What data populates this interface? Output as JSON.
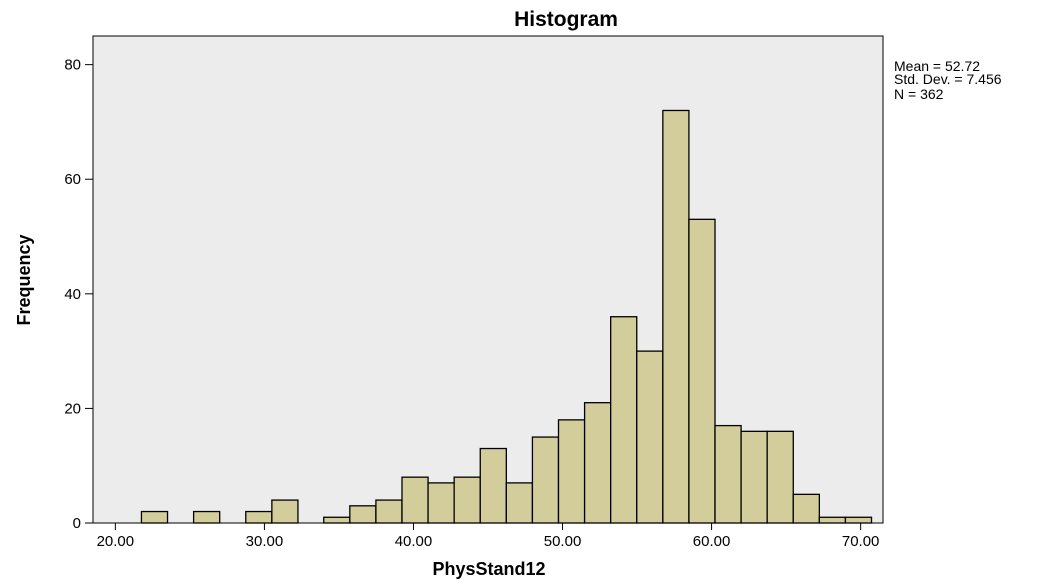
{
  "chart_data": {
    "type": "bar",
    "title": "Histogram",
    "xlabel": "PhysStand12",
    "ylabel": "Frequency",
    "xlim": [
      18.5,
      71.5
    ],
    "ylim": [
      0,
      85
    ],
    "x_ticks": [
      "20.00",
      "30.00",
      "40.00",
      "50.00",
      "60.00",
      "70.00"
    ],
    "x_tick_values": [
      20,
      30,
      40,
      50,
      60,
      70
    ],
    "y_ticks": [
      "0",
      "20",
      "40",
      "60",
      "80"
    ],
    "y_tick_values": [
      0,
      20,
      40,
      60,
      80
    ],
    "bin_width": 1.75,
    "bins": [
      {
        "x0": 21.75,
        "value": 2
      },
      {
        "x0": 25.25,
        "value": 2
      },
      {
        "x0": 28.75,
        "value": 2
      },
      {
        "x0": 30.5,
        "value": 4
      },
      {
        "x0": 33.98,
        "value": 1
      },
      {
        "x0": 35.73,
        "value": 3
      },
      {
        "x0": 37.48,
        "value": 4
      },
      {
        "x0": 39.23,
        "value": 8
      },
      {
        "x0": 40.98,
        "value": 7
      },
      {
        "x0": 42.73,
        "value": 8
      },
      {
        "x0": 44.48,
        "value": 13
      },
      {
        "x0": 46.23,
        "value": 7
      },
      {
        "x0": 47.98,
        "value": 15
      },
      {
        "x0": 49.73,
        "value": 18
      },
      {
        "x0": 51.48,
        "value": 21
      },
      {
        "x0": 53.23,
        "value": 36
      },
      {
        "x0": 54.98,
        "value": 30
      },
      {
        "x0": 56.73,
        "value": 72
      },
      {
        "x0": 58.48,
        "value": 53
      },
      {
        "x0": 60.23,
        "value": 17
      },
      {
        "x0": 61.98,
        "value": 16
      },
      {
        "x0": 63.73,
        "value": 16
      },
      {
        "x0": 65.48,
        "value": 5
      },
      {
        "x0": 67.23,
        "value": 1
      },
      {
        "x0": 68.98,
        "value": 1
      }
    ],
    "stats": [
      "Mean = 52.72",
      "Std. Dev. = 7.456",
      "N = 362"
    ],
    "grid": false,
    "legend": "none"
  }
}
